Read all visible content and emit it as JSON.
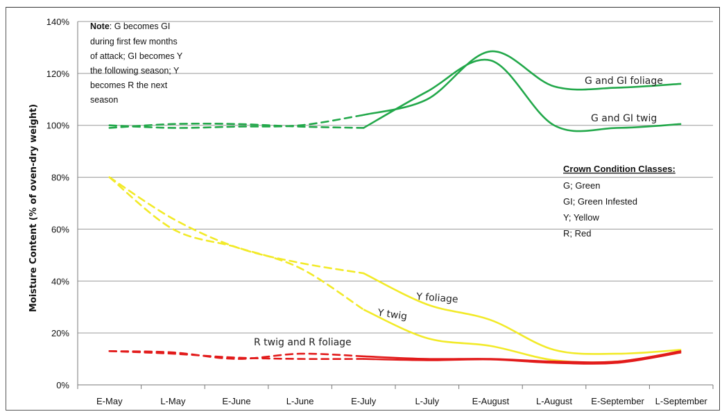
{
  "chart_data": {
    "type": "line",
    "ylabel": "Moisture Content (% of oven-dry weight)",
    "xlabel": "",
    "categories": [
      "E-May",
      "L-May",
      "E-June",
      "L-June",
      "E-July",
      "L-July",
      "E-August",
      "L-August",
      "E-September",
      "L-September"
    ],
    "y_ticks": [
      "0%",
      "20%",
      "40%",
      "60%",
      "80%",
      "100%",
      "120%",
      "140%"
    ],
    "ylim": [
      0,
      140
    ],
    "grid": "horizontal",
    "colors": {
      "green": "#22a84a",
      "yellow": "#f2ea28",
      "red": "#e21b1b"
    },
    "series": [
      {
        "name": "G and GI foliage",
        "color": "#22a84a",
        "dashed": [
          100,
          99,
          99.5,
          100,
          104
        ],
        "solid": [
          104,
          110,
          128.5,
          115,
          114.5,
          116
        ]
      },
      {
        "name": "G and GI twig",
        "color": "#22a84a",
        "dashed": [
          99,
          100.5,
          100.5,
          99.5,
          99
        ],
        "solid": [
          99,
          113,
          125,
          100,
          99,
          100.5
        ]
      },
      {
        "name": "Y foliage",
        "color": "#f2ea28",
        "dashed": [
          80,
          64,
          53,
          47,
          43
        ],
        "solid": [
          43,
          31,
          25,
          13.5,
          12,
          13.5
        ]
      },
      {
        "name": "Y twig",
        "color": "#f2ea28",
        "dashed": [
          80,
          60,
          53,
          45,
          29
        ],
        "solid": [
          29,
          18,
          15,
          9.5,
          9,
          13
        ]
      },
      {
        "name": "R twig and R foliage",
        "color": "#e21b1b",
        "dashed": [
          13,
          12.5,
          10,
          12,
          11
        ],
        "solid": [
          11,
          10,
          10,
          9,
          9,
          13
        ]
      },
      {
        "name": "",
        "color": "#e21b1b",
        "dashed": [
          13,
          12,
          10.5,
          10,
          10
        ],
        "solid": [
          10,
          9.5,
          9.8,
          8.5,
          8.5,
          12.5
        ]
      }
    ],
    "annotations": {
      "g_foliage": "G and GI foliage",
      "g_twig": "G and GI twig",
      "y_foliage": "Y foliage",
      "y_twig": "Y twig",
      "r": "R twig and R foliage"
    },
    "note": {
      "bold": "Note",
      "lines": [
        ": G becomes GI",
        "during first few months",
        "of attack; GI becomes Y",
        "the following season; Y",
        "becomes R the next",
        "season"
      ]
    },
    "legend": {
      "title": "Crown Condition Classes:",
      "items": [
        "G; Green",
        "GI; Green Infested",
        "Y; Yellow",
        "R; Red"
      ]
    }
  }
}
